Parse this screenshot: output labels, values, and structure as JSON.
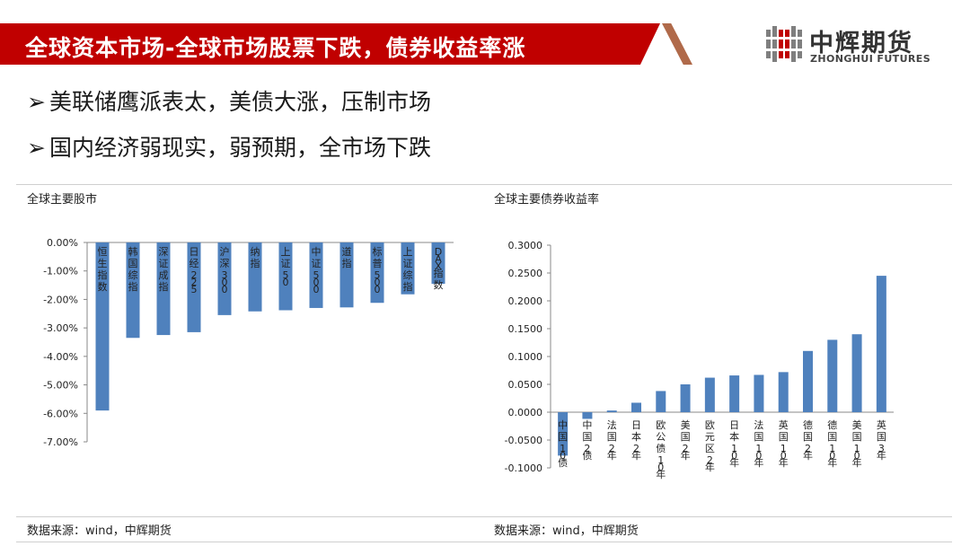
{
  "header": {
    "title": "全球资本市场-全球市场股票下跌，债券收益率涨",
    "logo_cn": "中辉期货",
    "logo_en": "ZHONGHUI FUTURES"
  },
  "bullets": [
    "美联储鹰派表太，美债大涨，压制市场",
    "国内经济弱现实，弱预期，全市场下跌"
  ],
  "panels": {
    "left_title": "全球主要股市",
    "right_title": "全球主要债券收益率",
    "left_source": "数据来源：wind，中辉期货",
    "right_source": "数据来源：wind，中辉期货"
  },
  "colors": {
    "banner": "#c00000",
    "bar": "#4f81bd",
    "logo_red": "#c00000",
    "logo_gray": "#7f7f7f"
  },
  "chart_data": [
    {
      "type": "bar",
      "title": "全球主要股市",
      "categories": [
        "恒生指数",
        "韩国综指",
        "深证成指",
        "日经225",
        "沪深300",
        "纳指",
        "上证50",
        "中证500",
        "道指",
        "标普500",
        "上证综指",
        "DAX指数"
      ],
      "values": [
        -5.9,
        -3.35,
        -3.25,
        -3.15,
        -2.55,
        -2.42,
        -2.38,
        -2.3,
        -2.28,
        -2.12,
        -1.82,
        -1.45
      ],
      "yticks": [
        "0.00%",
        "-1.00%",
        "-2.00%",
        "-3.00%",
        "-4.00%",
        "-5.00%",
        "-6.00%",
        "-7.00%"
      ],
      "ylim": [
        -7,
        0
      ],
      "unit": "%"
    },
    {
      "type": "bar",
      "title": "全球主要债券收益率",
      "categories": [
        "中国10债",
        "中国2债",
        "法国2年",
        "日本2年",
        "欧公债10年",
        "美国2年",
        "欧元区2年",
        "日本10年",
        "法国10年",
        "英国10年",
        "德国2年",
        "德国10年",
        "美国10年",
        "英国3年"
      ],
      "values": [
        -0.078,
        -0.012,
        0.003,
        0.017,
        0.038,
        0.05,
        0.062,
        0.066,
        0.067,
        0.072,
        0.11,
        0.13,
        0.14,
        0.245
      ],
      "yticks": [
        "0.3000",
        "0.2500",
        "0.2000",
        "0.1500",
        "0.1000",
        "0.0500",
        "0.0000",
        "-0.0500",
        "-0.1000"
      ],
      "ylim": [
        -0.1,
        0.3
      ]
    }
  ]
}
